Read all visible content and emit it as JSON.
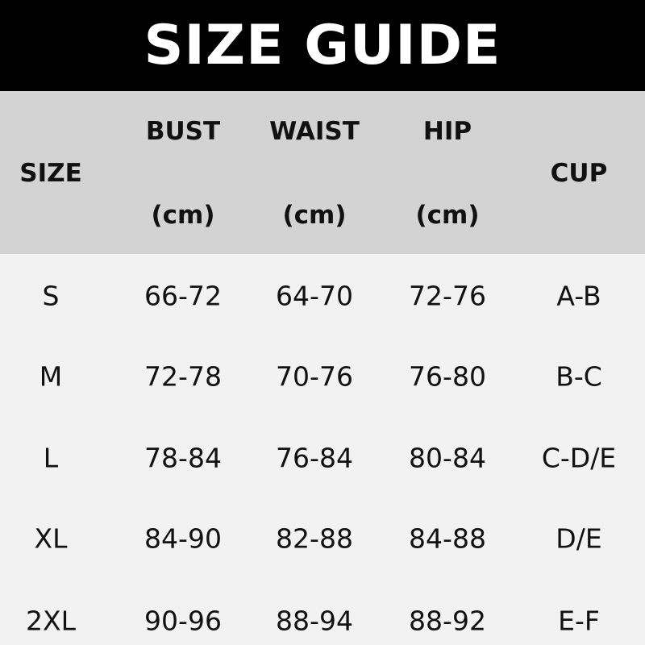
{
  "title": "SIZE GUIDE",
  "header": {
    "size": "SIZE",
    "bust": "BUST",
    "waist": "WAIST",
    "hip": "HIP",
    "cup": "CUP",
    "unit": "(cm)"
  },
  "rows": [
    {
      "size": "S",
      "bust": "66-72",
      "waist": "64-70",
      "hip": "72-76",
      "cup": "A-B"
    },
    {
      "size": "M",
      "bust": "72-78",
      "waist": "70-76",
      "hip": "76-80",
      "cup": "B-C"
    },
    {
      "size": "L",
      "bust": "78-84",
      "waist": "76-84",
      "hip": "80-84",
      "cup": "C-D/E"
    },
    {
      "size": "XL",
      "bust": "84-90",
      "waist": "82-88",
      "hip": "84-88",
      "cup": "D/E"
    },
    {
      "size": "2XL",
      "bust": "90-96",
      "waist": "88-94",
      "hip": "88-92",
      "cup": "E-F"
    }
  ],
  "colors": {
    "title_bg": "#000000",
    "title_text": "#ffffff",
    "header_bg": "#d3d3d3",
    "body_bg": "#f2f2f2"
  }
}
